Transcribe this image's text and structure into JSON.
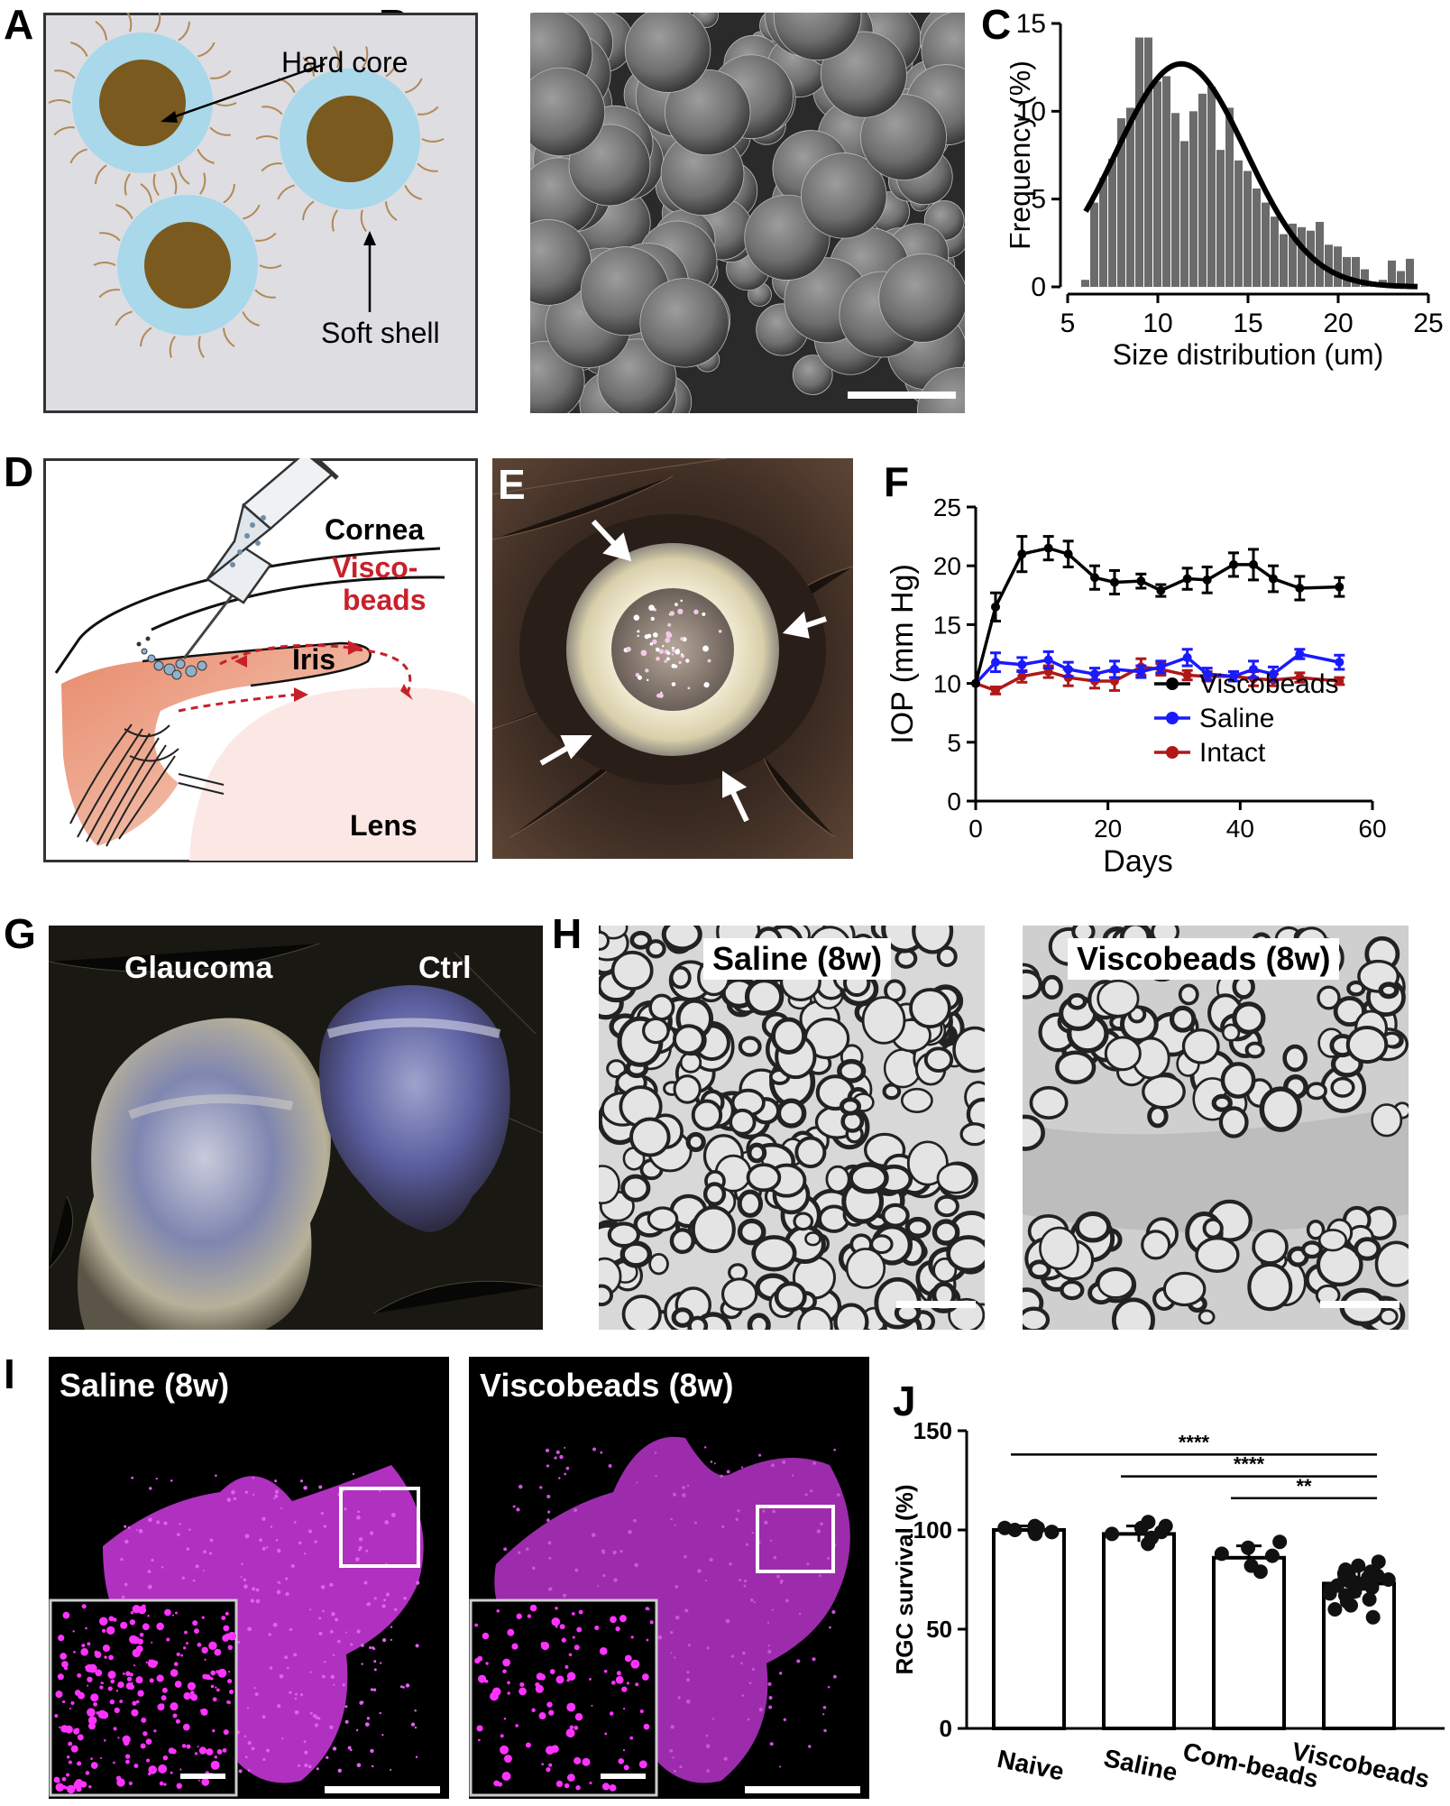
{
  "panels": {
    "A": {
      "letter": "A",
      "labels": {
        "hard_core": "Hard core",
        "soft_shell": "Soft shell"
      },
      "colors": {
        "background": "#dedde2",
        "shell": "#a8d8ea",
        "core": "#7a5a1e",
        "hairs": "#b08a55"
      }
    },
    "B": {
      "letter": "B"
    },
    "C": {
      "letter": "C"
    },
    "D": {
      "letter": "D",
      "labels": {
        "cornea": "Cornea",
        "visco_line1": "Visco-",
        "visco_line2": "beads",
        "iris": "Iris",
        "lens": "Lens"
      },
      "colors": {
        "visco": "#c8202a"
      }
    },
    "E": {
      "letter": "E"
    },
    "F": {
      "letter": "F"
    },
    "G": {
      "letter": "G",
      "labels": {
        "glaucoma": "Glaucoma",
        "ctrl": "Ctrl"
      }
    },
    "H": {
      "letter": "H",
      "labels": {
        "left": "Saline (8w)",
        "right": "Viscobeads (8w)"
      }
    },
    "I": {
      "letter": "I",
      "labels": {
        "left": "Saline (8w)",
        "right": "Viscobeads (8w)"
      },
      "colors": {
        "retina": "#b030c0",
        "cells": "#ff33ff"
      }
    },
    "J": {
      "letter": "J"
    }
  },
  "chart_data": [
    {
      "panel": "C",
      "type": "bar",
      "xlabel": "Size distribution (um)",
      "ylabel": "Frequency (%)",
      "xlim": [
        5,
        25
      ],
      "ylim": [
        0,
        15
      ],
      "xticks": [
        "5",
        "10",
        "15",
        "20",
        "25"
      ],
      "yticks": [
        "0",
        "5",
        "10",
        "15"
      ],
      "bar_color": "#6b6b6b",
      "bins": [
        6,
        6.5,
        7,
        7.5,
        8,
        8.5,
        9,
        9.5,
        10,
        10.5,
        11,
        11.5,
        12,
        12.5,
        13,
        13.5,
        14,
        14.5,
        15,
        15.5,
        16,
        16.5,
        17,
        17.5,
        18,
        18.5,
        19,
        19.5,
        20,
        20.5,
        21,
        21.5,
        22,
        22.5,
        23,
        23.5,
        24
      ],
      "values": [
        0.4,
        4.8,
        6.2,
        7.3,
        9.6,
        10.2,
        14.2,
        14.2,
        11.7,
        12.0,
        9.9,
        8.3,
        10.0,
        11.0,
        11.4,
        7.8,
        10.2,
        7.2,
        6.6,
        5.6,
        4.8,
        4.0,
        3.0,
        3.6,
        3.4,
        3.2,
        3.7,
        2.4,
        2.3,
        1.7,
        1.7,
        1.0,
        0.2,
        0.4,
        1.5,
        0.9,
        1.6
      ],
      "fit_curve": {
        "mean": 11.3,
        "peak": 12.7,
        "sd": 3.6,
        "x_start": 6,
        "x_end": 24.5
      }
    },
    {
      "panel": "F",
      "type": "line",
      "xlabel": "Days",
      "ylabel": "IOP (mm Hg)",
      "xlim": [
        0,
        60
      ],
      "ylim": [
        0,
        25
      ],
      "xticks": [
        "0",
        "20",
        "40",
        "60"
      ],
      "yticks": [
        "0",
        "5",
        "10",
        "15",
        "20",
        "25"
      ],
      "legend_position": "bottom-right",
      "series": [
        {
          "name": "Viscobeads",
          "color": "#000000",
          "x": [
            0,
            3,
            7,
            11,
            14,
            18,
            21,
            25,
            28,
            32,
            35,
            39,
            42,
            45,
            49,
            55
          ],
          "y": [
            10,
            16.5,
            21,
            21.5,
            21,
            19,
            18.6,
            18.7,
            17.9,
            18.9,
            18.8,
            20.1,
            20.1,
            18.9,
            18.1,
            18.2
          ],
          "err": [
            0,
            1.2,
            1.5,
            1.0,
            1.1,
            1.0,
            1.0,
            0.6,
            0.5,
            0.9,
            1.1,
            1.0,
            1.3,
            1.1,
            1.0,
            0.8
          ]
        },
        {
          "name": "Saline",
          "color": "#1a1aff",
          "x": [
            0,
            3,
            7,
            11,
            14,
            18,
            21,
            25,
            28,
            32,
            35,
            39,
            42,
            45,
            49,
            55
          ],
          "y": [
            10,
            11.8,
            11.6,
            12.0,
            11.2,
            10.8,
            11.2,
            11.0,
            11.4,
            12.2,
            10.8,
            10.6,
            11.2,
            10.8,
            12.5,
            11.8
          ],
          "err": [
            0,
            0.8,
            0.6,
            0.7,
            0.6,
            0.5,
            0.7,
            0.5,
            0.5,
            0.7,
            0.5,
            0.4,
            0.7,
            0.6,
            0.4,
            0.6
          ]
        },
        {
          "name": "Intact",
          "color": "#b01818",
          "x": [
            0,
            3,
            7,
            11,
            14,
            18,
            21,
            25,
            28,
            32,
            35,
            39,
            42,
            45,
            49,
            55
          ],
          "y": [
            10,
            9.4,
            10.6,
            11.0,
            10.5,
            10.2,
            10.2,
            11.4,
            11.2,
            10.7,
            10.6,
            10.6,
            10.4,
            10.3,
            10.5,
            10.2
          ],
          "err": [
            0,
            0.3,
            0.5,
            0.5,
            0.7,
            0.6,
            0.8,
            0.7,
            0.5,
            0.4,
            0.4,
            0.4,
            0.6,
            0.5,
            0.4,
            0.3
          ]
        }
      ]
    },
    {
      "panel": "J",
      "type": "bar",
      "ylabel": "RGC survival (%)",
      "ylim": [
        0,
        150
      ],
      "yticks": [
        "0",
        "50",
        "100",
        "150"
      ],
      "categories": [
        "Naive",
        "Saline",
        "Com-beads",
        "Viscobeads"
      ],
      "values": [
        100,
        98,
        86,
        73
      ],
      "err": [
        2,
        4,
        6,
        7
      ],
      "points": [
        [
          98,
          99,
          100,
          101,
          102,
          99,
          101
        ],
        [
          93,
          96,
          98,
          99,
          101,
          102,
          104
        ],
        [
          79,
          82,
          87,
          88,
          91,
          94
        ],
        [
          56,
          62,
          65,
          67,
          69,
          70,
          71,
          72,
          73,
          74,
          75,
          76,
          77,
          78,
          79,
          80,
          82,
          60,
          64,
          68,
          74,
          76,
          78,
          84
        ]
      ],
      "significance": [
        {
          "from": 0,
          "to": 3,
          "label": "****"
        },
        {
          "from": 1,
          "to": 3,
          "label": "****"
        },
        {
          "from": 2,
          "to": 3,
          "label": "**"
        }
      ]
    }
  ]
}
